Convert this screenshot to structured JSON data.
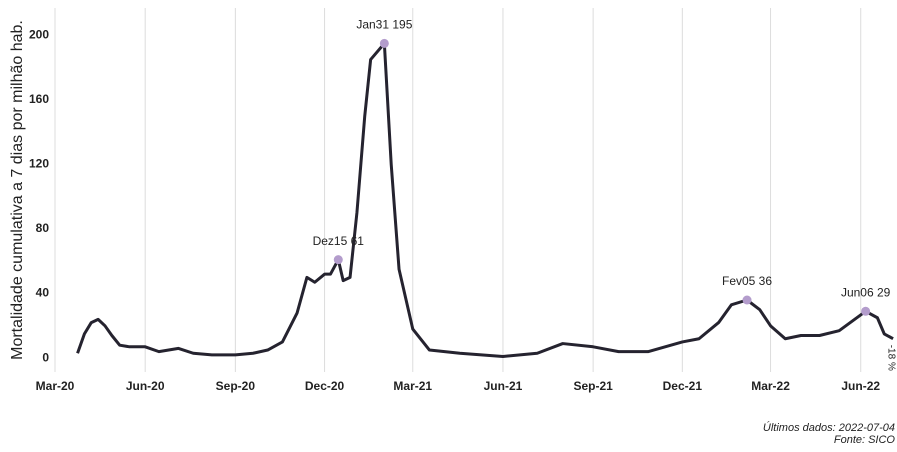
{
  "chart_data": {
    "type": "line",
    "ylabel": "Mortalidade cumulativa a 7 dias por milhão hab.",
    "x": [
      "2020-03-24",
      "2020-03-31",
      "2020-04-07",
      "2020-04-14",
      "2020-04-21",
      "2020-04-28",
      "2020-05-06",
      "2020-05-16",
      "2020-06-01",
      "2020-06-15",
      "2020-07-05",
      "2020-07-20",
      "2020-08-08",
      "2020-09-01",
      "2020-09-19",
      "2020-10-04",
      "2020-10-19",
      "2020-11-03",
      "2020-11-13",
      "2020-11-21",
      "2020-12-01",
      "2020-12-07",
      "2020-12-15",
      "2020-12-20",
      "2020-12-27",
      "2021-01-03",
      "2021-01-11",
      "2021-01-17",
      "2021-01-31",
      "2021-02-07",
      "2021-02-15",
      "2021-03-01",
      "2021-03-18",
      "2021-04-18",
      "2021-06-01",
      "2021-07-06",
      "2021-08-01",
      "2021-09-01",
      "2021-09-27",
      "2021-10-27",
      "2021-12-01",
      "2021-12-18",
      "2022-01-07",
      "2022-01-20",
      "2022-02-05",
      "2022-02-18",
      "2022-03-01",
      "2022-03-16",
      "2022-04-01",
      "2022-04-20",
      "2022-05-10",
      "2022-06-06",
      "2022-06-18",
      "2022-06-25",
      "2022-07-04"
    ],
    "series": [
      {
        "name": "Mortalidade",
        "color": "#25232f",
        "values": [
          3,
          15,
          22,
          24,
          20,
          14,
          8,
          7,
          7,
          4,
          6,
          3,
          2,
          2,
          3,
          5,
          10,
          28,
          50,
          47,
          52,
          52,
          61,
          48,
          50,
          90,
          150,
          185,
          195,
          120,
          55,
          18,
          5,
          3,
          1,
          3,
          9,
          7,
          4,
          4,
          10,
          12,
          22,
          33,
          36,
          30,
          20,
          12,
          14,
          14,
          17,
          29,
          25,
          15,
          12
        ]
      }
    ],
    "annotations": [
      {
        "x": "2020-12-15",
        "y": 61,
        "label": "Dez15 61"
      },
      {
        "x": "2021-01-31",
        "y": 195,
        "label": "Jan31 195"
      },
      {
        "x": "2022-02-05",
        "y": 36,
        "label": "Fev05 36"
      },
      {
        "x": "2022-06-06",
        "y": 29,
        "label": "Jun06 29"
      }
    ],
    "marker_color": "#b39ccc",
    "end_label": "-18 %",
    "footnote": "Últimos dados: 2022-07-04",
    "source": "Fonte: SICO",
    "xlim": [
      "2020-02-10",
      "2022-07-08"
    ],
    "xticks": [
      {
        "value": "2020-03-01",
        "label": "Mar-20"
      },
      {
        "value": "2020-06-01",
        "label": "Jun-20"
      },
      {
        "value": "2020-09-01",
        "label": "Sep-20"
      },
      {
        "value": "2020-12-01",
        "label": "Dec-20"
      },
      {
        "value": "2021-03-01",
        "label": "Mar-21"
      },
      {
        "value": "2021-06-01",
        "label": "Jun-21"
      },
      {
        "value": "2021-09-01",
        "label": "Sep-21"
      },
      {
        "value": "2021-12-01",
        "label": "Dec-21"
      },
      {
        "value": "2022-03-01",
        "label": "Mar-22"
      },
      {
        "value": "2022-06-01",
        "label": "Jun-22"
      }
    ],
    "ylim": [
      -8,
      212
    ],
    "yticks": [
      0,
      40,
      80,
      120,
      160,
      200
    ],
    "grid": true
  }
}
